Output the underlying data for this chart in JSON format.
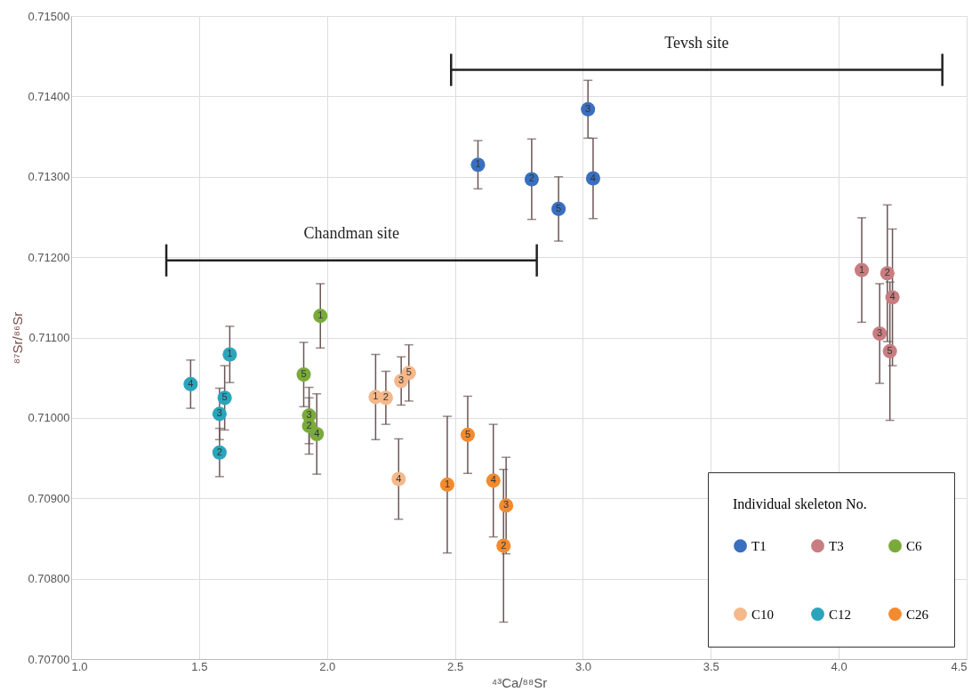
{
  "chart_data": {
    "type": "scatter",
    "xlabel": "⁴³Ca/⁸⁸Sr",
    "ylabel": "⁸⁷Sr/⁸⁶Sr",
    "legend_title": "Individual skeleton No.",
    "legend": "bottom right",
    "grid": true,
    "marker": "circle",
    "xlim": [
      1.0,
      4.5
    ],
    "ylim": [
      0.707,
      0.715
    ],
    "xticks": [
      {
        "value": 1.0,
        "label": "1.0"
      },
      {
        "value": 1.5,
        "label": "1.5"
      },
      {
        "value": 2.0,
        "label": "2.0"
      },
      {
        "value": 2.5,
        "label": "2.5"
      },
      {
        "value": 3.0,
        "label": "3.0"
      },
      {
        "value": 3.5,
        "label": "3.5"
      },
      {
        "value": 4.0,
        "label": "4.0"
      },
      {
        "value": 4.5,
        "label": "4.5"
      }
    ],
    "yticks": [
      {
        "value": 0.707,
        "label": "0.70700"
      },
      {
        "value": 0.708,
        "label": "0.70800"
      },
      {
        "value": 0.709,
        "label": "0.70900"
      },
      {
        "value": 0.71,
        "label": "0.71000"
      },
      {
        "value": 0.711,
        "label": "0.71100"
      },
      {
        "value": 0.712,
        "label": "0.71200"
      },
      {
        "value": 0.713,
        "label": "0.71300"
      },
      {
        "value": 0.714,
        "label": "0.71400"
      },
      {
        "value": 0.715,
        "label": "0.71500"
      }
    ],
    "series": [
      {
        "name": "T1",
        "color": "#3a6fc0",
        "x": [
          2.59,
          2.8,
          3.02,
          3.04,
          2.905
        ],
        "values": [
          0.71315,
          0.71297,
          0.71384,
          0.71298,
          0.7126
        ],
        "errors": [
          0.0003,
          0.0005,
          0.00036,
          0.0005,
          0.0004
        ]
      },
      {
        "name": "T3",
        "color": "#c97d80",
        "x": [
          4.09,
          4.19,
          4.16,
          4.21,
          4.2
        ],
        "values": [
          0.71184,
          0.7118,
          0.71105,
          0.7115,
          0.71083
        ],
        "errors": [
          0.00065,
          0.00085,
          0.00062,
          0.00085,
          0.00086
        ]
      },
      {
        "name": "C6",
        "color": "#7aab3a",
        "x": [
          1.974,
          1.93,
          1.93,
          1.96,
          1.909
        ],
        "values": [
          0.71127,
          0.7099,
          0.71003,
          0.7098,
          0.71054
        ],
        "errors": [
          0.0004,
          0.00035,
          0.00035,
          0.0005,
          0.0004
        ]
      },
      {
        "name": "C10",
        "color": "#f5b88a",
        "x": [
          2.19,
          2.23,
          2.29,
          2.28,
          2.32
        ],
        "values": [
          0.71026,
          0.71025,
          0.71046,
          0.70924,
          0.71056
        ],
        "errors": [
          0.00053,
          0.00033,
          0.0003,
          0.0005,
          0.00035
        ]
      },
      {
        "name": "C12",
        "color": "#2aa5bb",
        "x": [
          1.62,
          1.58,
          1.58,
          1.467,
          1.6
        ],
        "values": [
          0.71079,
          0.70957,
          0.71005,
          0.71042,
          0.71025
        ],
        "errors": [
          0.00035,
          0.0003,
          0.00032,
          0.0003,
          0.0004
        ]
      },
      {
        "name": "C26",
        "color": "#f28b30",
        "x": [
          2.47,
          2.69,
          2.7,
          2.65,
          2.55
        ],
        "values": [
          0.70917,
          0.70841,
          0.70891,
          0.70922,
          0.70979
        ],
        "errors": [
          0.00085,
          0.00095,
          0.0006,
          0.0007,
          0.00048
        ]
      },
      {
        "name": "Tevsh site",
        "type": "line",
        "color": "#222222",
        "marker": "none",
        "x": [
          2.485,
          4.405
        ],
        "values": [
          0.71433,
          0.71433
        ],
        "errors": [
          0.0002,
          0.0002
        ]
      },
      {
        "name": "Chandman site",
        "type": "line",
        "color": "#222222",
        "marker": "none",
        "x": [
          1.372,
          2.82
        ],
        "values": [
          0.71196,
          0.71196
        ],
        "errors": [
          0.0002,
          0.0002
        ]
      }
    ],
    "annotations": [
      {
        "text": "1",
        "x": 2.59,
        "y": 0.71315
      },
      {
        "text": "2",
        "x": 2.8,
        "y": 0.71297
      },
      {
        "text": "3",
        "x": 3.02,
        "y": 0.71384
      },
      {
        "text": "4",
        "x": 3.04,
        "y": 0.71298
      },
      {
        "text": "5",
        "x": 2.905,
        "y": 0.7126
      },
      {
        "text": "1",
        "x": 4.09,
        "y": 0.71184
      },
      {
        "text": "2",
        "x": 4.19,
        "y": 0.7118
      },
      {
        "text": "3",
        "x": 4.16,
        "y": 0.71105
      },
      {
        "text": "4",
        "x": 4.21,
        "y": 0.7115
      },
      {
        "text": "5",
        "x": 4.2,
        "y": 0.71083
      },
      {
        "text": "1",
        "x": 1.974,
        "y": 0.71127
      },
      {
        "text": "2",
        "x": 1.93,
        "y": 0.7099
      },
      {
        "text": "3",
        "x": 1.93,
        "y": 0.71003
      },
      {
        "text": "4",
        "x": 1.96,
        "y": 0.7098
      },
      {
        "text": "5",
        "x": 1.909,
        "y": 0.71054
      },
      {
        "text": "1",
        "x": 2.19,
        "y": 0.71026
      },
      {
        "text": "2",
        "x": 2.23,
        "y": 0.71025
      },
      {
        "text": "3",
        "x": 2.29,
        "y": 0.71046
      },
      {
        "text": "4",
        "x": 2.28,
        "y": 0.70924
      },
      {
        "text": "5",
        "x": 2.32,
        "y": 0.71056
      },
      {
        "text": "1",
        "x": 1.62,
        "y": 0.71079
      },
      {
        "text": "2",
        "x": 1.58,
        "y": 0.70957
      },
      {
        "text": "3",
        "x": 1.58,
        "y": 0.71005
      },
      {
        "text": "4",
        "x": 1.467,
        "y": 0.71042
      },
      {
        "text": "5",
        "x": 1.6,
        "y": 0.71025
      },
      {
        "text": "1",
        "x": 2.47,
        "y": 0.70917
      },
      {
        "text": "2",
        "x": 2.69,
        "y": 0.70841
      },
      {
        "text": "3",
        "x": 2.7,
        "y": 0.70891
      },
      {
        "text": "4",
        "x": 2.65,
        "y": 0.70922
      },
      {
        "text": "5",
        "x": 2.55,
        "y": 0.70979
      }
    ]
  }
}
